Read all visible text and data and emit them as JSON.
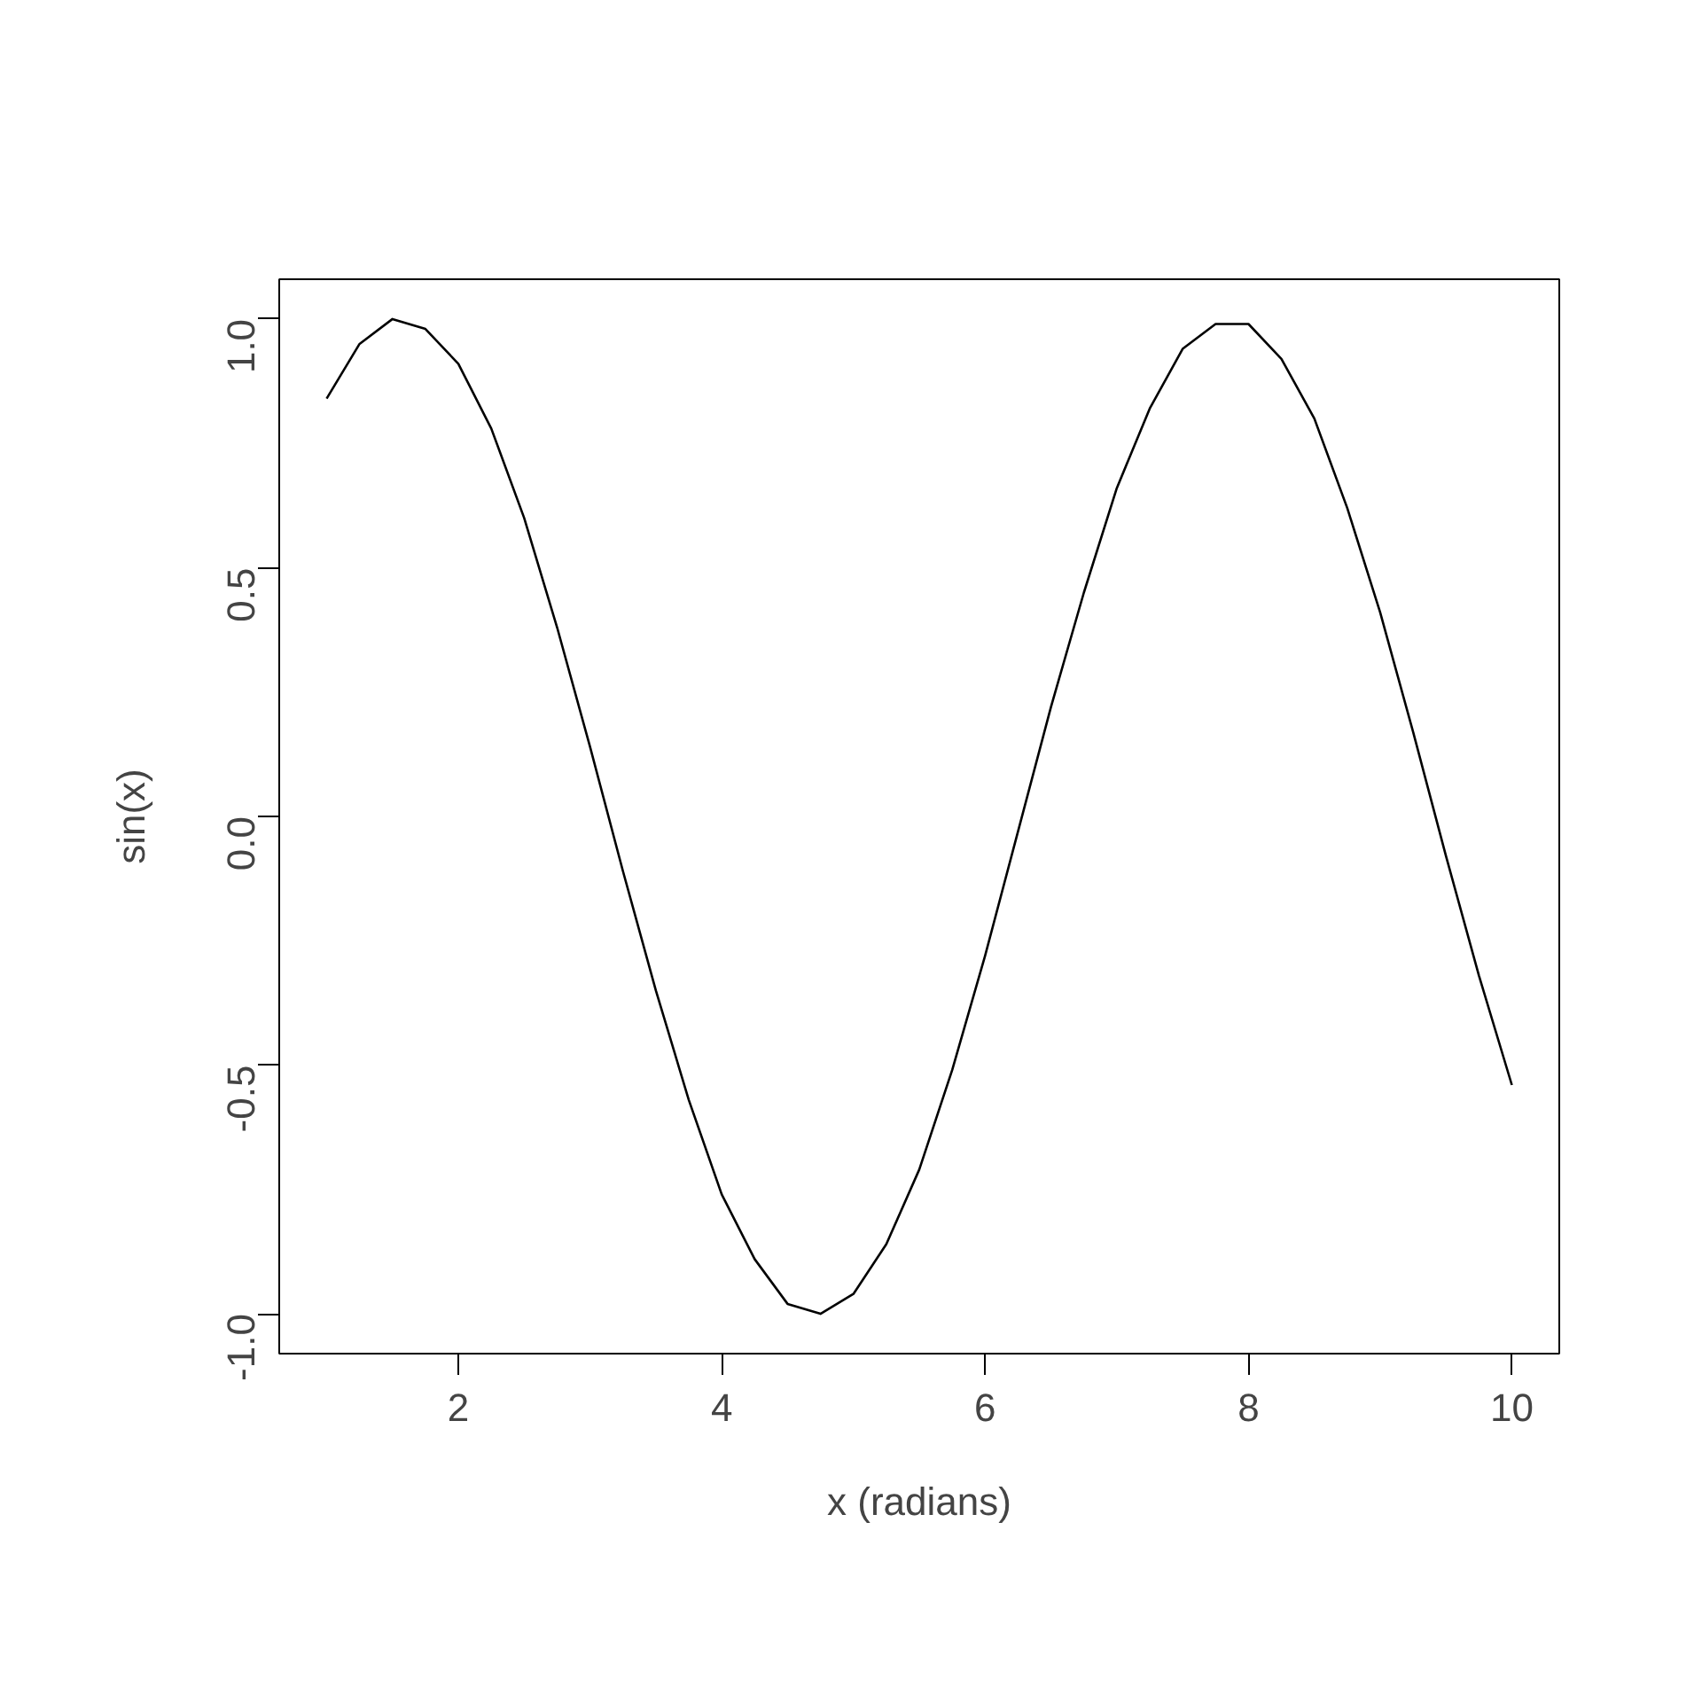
{
  "chart_data": {
    "type": "line",
    "xlabel": "x (radians)",
    "ylabel": "sin(x)",
    "x": [
      1,
      1.25,
      1.5,
      1.75,
      2,
      2.25,
      2.5,
      2.75,
      3,
      3.25,
      3.5,
      3.75,
      4,
      4.25,
      4.5,
      4.75,
      5,
      5.25,
      5.5,
      5.75,
      6,
      6.25,
      6.5,
      6.75,
      7,
      7.25,
      7.5,
      7.75,
      8,
      8.25,
      8.5,
      8.75,
      9,
      9.25,
      9.5,
      9.75,
      10
    ],
    "series": [
      {
        "color": "#000000",
        "values": [
          0.84,
          0.95,
          1.0,
          0.98,
          0.91,
          0.78,
          0.6,
          0.38,
          0.14,
          -0.11,
          -0.35,
          -0.57,
          -0.76,
          -0.89,
          -0.98,
          -1.0,
          -0.96,
          -0.86,
          -0.71,
          -0.51,
          -0.28,
          -0.03,
          0.22,
          0.45,
          0.66,
          0.82,
          0.94,
          0.99,
          0.99,
          0.92,
          0.8,
          0.62,
          0.41,
          0.17,
          -0.08,
          -0.32,
          -0.54
        ]
      }
    ],
    "xlim": [
      0.64,
      10.36
    ],
    "ylim": [
      -1.08,
      1.08
    ],
    "xticks": [
      2,
      4,
      6,
      8,
      10
    ],
    "yticks": [
      {
        "value": -1,
        "label": "-1.0"
      },
      {
        "value": -0.5,
        "label": "-0.5"
      },
      {
        "value": 0,
        "label": "0.0"
      },
      {
        "value": 0.5,
        "label": "0.5"
      },
      {
        "value": 1,
        "label": "1.0"
      }
    ],
    "grid": false,
    "line_style": "solid",
    "marker": "none"
  }
}
